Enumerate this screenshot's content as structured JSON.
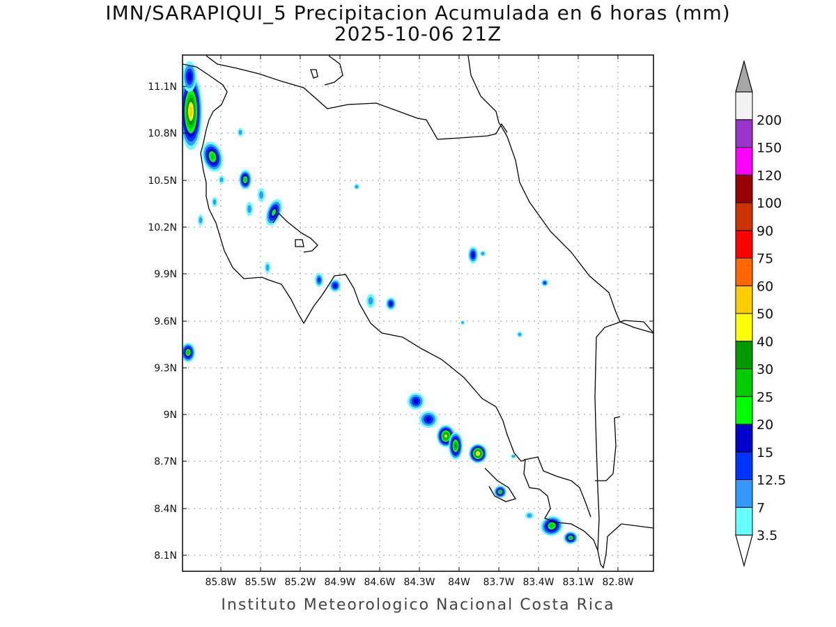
{
  "title_line1": "IMN/SARAPIQUI_5 Precipitacion Acumulada en 6 horas (mm)",
  "title_line2": "2025-10-06 21Z",
  "footer": "Instituto Meteorologico Nacional Costa Rica",
  "axes": {
    "lon_ticks": [
      "85.8W",
      "85.5W",
      "85.2W",
      "84.9W",
      "84.6W",
      "84.3W",
      "84W",
      "83.7W",
      "83.4W",
      "83.1W",
      "82.8W"
    ],
    "lat_ticks": [
      "11.1N",
      "10.8N",
      "10.5N",
      "10.2N",
      "9.9N",
      "9.6N",
      "9.3N",
      "9N",
      "8.7N",
      "8.4N",
      "8.1N"
    ]
  },
  "colorbar": {
    "levels": [
      "3.5",
      "7",
      "12.5",
      "15",
      "20",
      "25",
      "30",
      "40",
      "50",
      "60",
      "75",
      "90",
      "100",
      "120",
      "150",
      "200"
    ],
    "colors": [
      "#66ffff",
      "#3399ff",
      "#0033ff",
      "#0000cc",
      "#00ff00",
      "#00cc00",
      "#009900",
      "#ffff00",
      "#ffcc00",
      "#ff6600",
      "#ff0000",
      "#cc3300",
      "#990000",
      "#ff00ff",
      "#9933cc",
      "#f2f2f2"
    ],
    "under_color": "#ffffff",
    "over_color": "#a6a6a6"
  }
}
